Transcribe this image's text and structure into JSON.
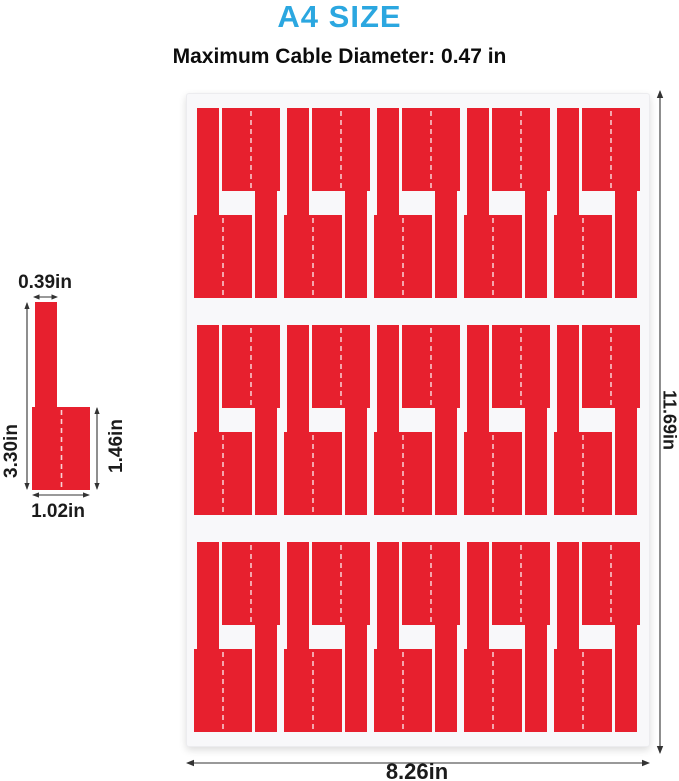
{
  "header": {
    "title": "A4 SIZE",
    "subtitle": "Maximum Cable Diameter: 0.47 in"
  },
  "single_label": {
    "stem_width": "0.39in",
    "total_height": "3.30in",
    "flag_height": "1.46in",
    "flag_width": "1.02in"
  },
  "sheet": {
    "width": "8.26in",
    "height": "11.69in",
    "rows": 3,
    "pairs_per_row": 5,
    "labels_per_row": 10,
    "total_labels": 30
  },
  "colors": {
    "accent_blue": "#2BA7E0",
    "label_red": "#E7202E",
    "slit_pink": "#F9D2D6",
    "dimension_text": "#1B1B1B",
    "arrow": "#333333",
    "sheet_bg": "#F8F8FA"
  }
}
